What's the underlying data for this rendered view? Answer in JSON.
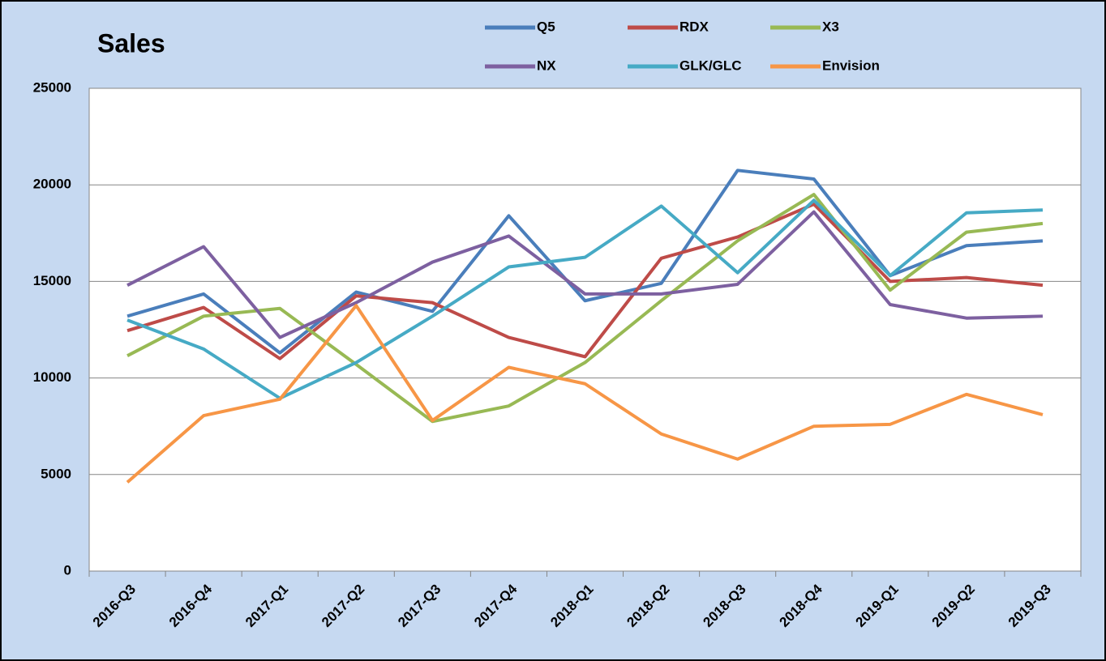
{
  "chart_data": {
    "type": "line",
    "title": "Sales",
    "categories": [
      "2016-Q3",
      "2016-Q4",
      "2017-Q1",
      "2017-Q2",
      "2017-Q3",
      "2017-Q4",
      "2018-Q1",
      "2018-Q2",
      "2018-Q3",
      "2018-Q4",
      "2019-Q1",
      "2019-Q2",
      "2019-Q3"
    ],
    "series": [
      {
        "name": "Q5",
        "color": "#4a7ebb",
        "values": [
          13200,
          14350,
          11300,
          14450,
          13450,
          18400,
          14000,
          14900,
          20750,
          20300,
          15300,
          16850,
          17100
        ]
      },
      {
        "name": "RDX",
        "color": "#be4b48",
        "values": [
          12450,
          13650,
          11000,
          14250,
          13900,
          12100,
          11100,
          16200,
          17300,
          19000,
          15000,
          15200,
          14800
        ]
      },
      {
        "name": "X3",
        "color": "#98b954",
        "values": [
          11150,
          13200,
          13600,
          10700,
          7750,
          8550,
          10800,
          14000,
          17100,
          19500,
          14550,
          17550,
          18000
        ]
      },
      {
        "name": "NX",
        "color": "#7d60a0",
        "values": [
          14800,
          16800,
          12100,
          13900,
          16000,
          17350,
          14350,
          14350,
          14850,
          18600,
          13800,
          13100,
          13200
        ]
      },
      {
        "name": "GLK/GLC",
        "color": "#46aac5",
        "values": [
          13000,
          11500,
          8950,
          10800,
          13200,
          15750,
          16250,
          18900,
          15450,
          19200,
          15300,
          18550,
          18700
        ]
      },
      {
        "name": "Envision",
        "color": "#f79646",
        "values": [
          4600,
          8050,
          8900,
          13750,
          7800,
          10550,
          9700,
          7100,
          5800,
          7500,
          7600,
          9150,
          8100
        ]
      }
    ],
    "ylim": [
      0,
      25000
    ],
    "yticks": [
      0,
      5000,
      10000,
      15000,
      20000,
      25000
    ],
    "grid": true,
    "legend": "top"
  }
}
